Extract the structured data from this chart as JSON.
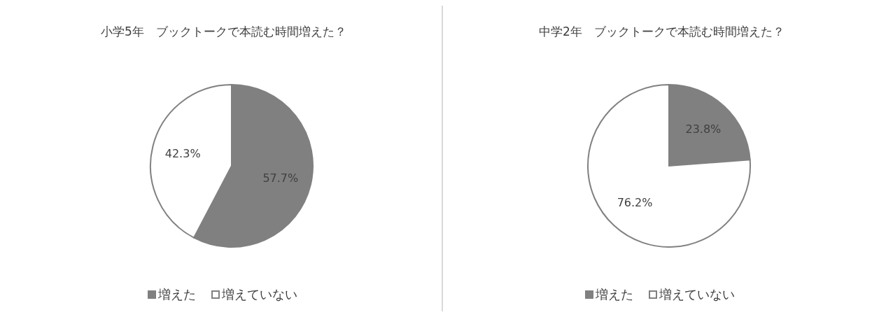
{
  "chart_data": [
    {
      "type": "pie",
      "title": "小学5年　ブックトークで本読む時間増えた？",
      "categories": [
        "増えた",
        "増えていない"
      ],
      "values": [
        57.7,
        42.3
      ],
      "colors": [
        "#808080",
        "#ffffff"
      ],
      "value_labels": [
        "57.7%",
        "42.3%"
      ],
      "legend": "bottom"
    },
    {
      "type": "pie",
      "title": "中学2年　ブックトークで本読む時間増えた？",
      "categories": [
        "増えた",
        "増えていない"
      ],
      "values": [
        23.8,
        76.2
      ],
      "colors": [
        "#808080",
        "#ffffff"
      ],
      "value_labels": [
        "23.8%",
        "76.2%"
      ],
      "legend": "bottom"
    }
  ]
}
